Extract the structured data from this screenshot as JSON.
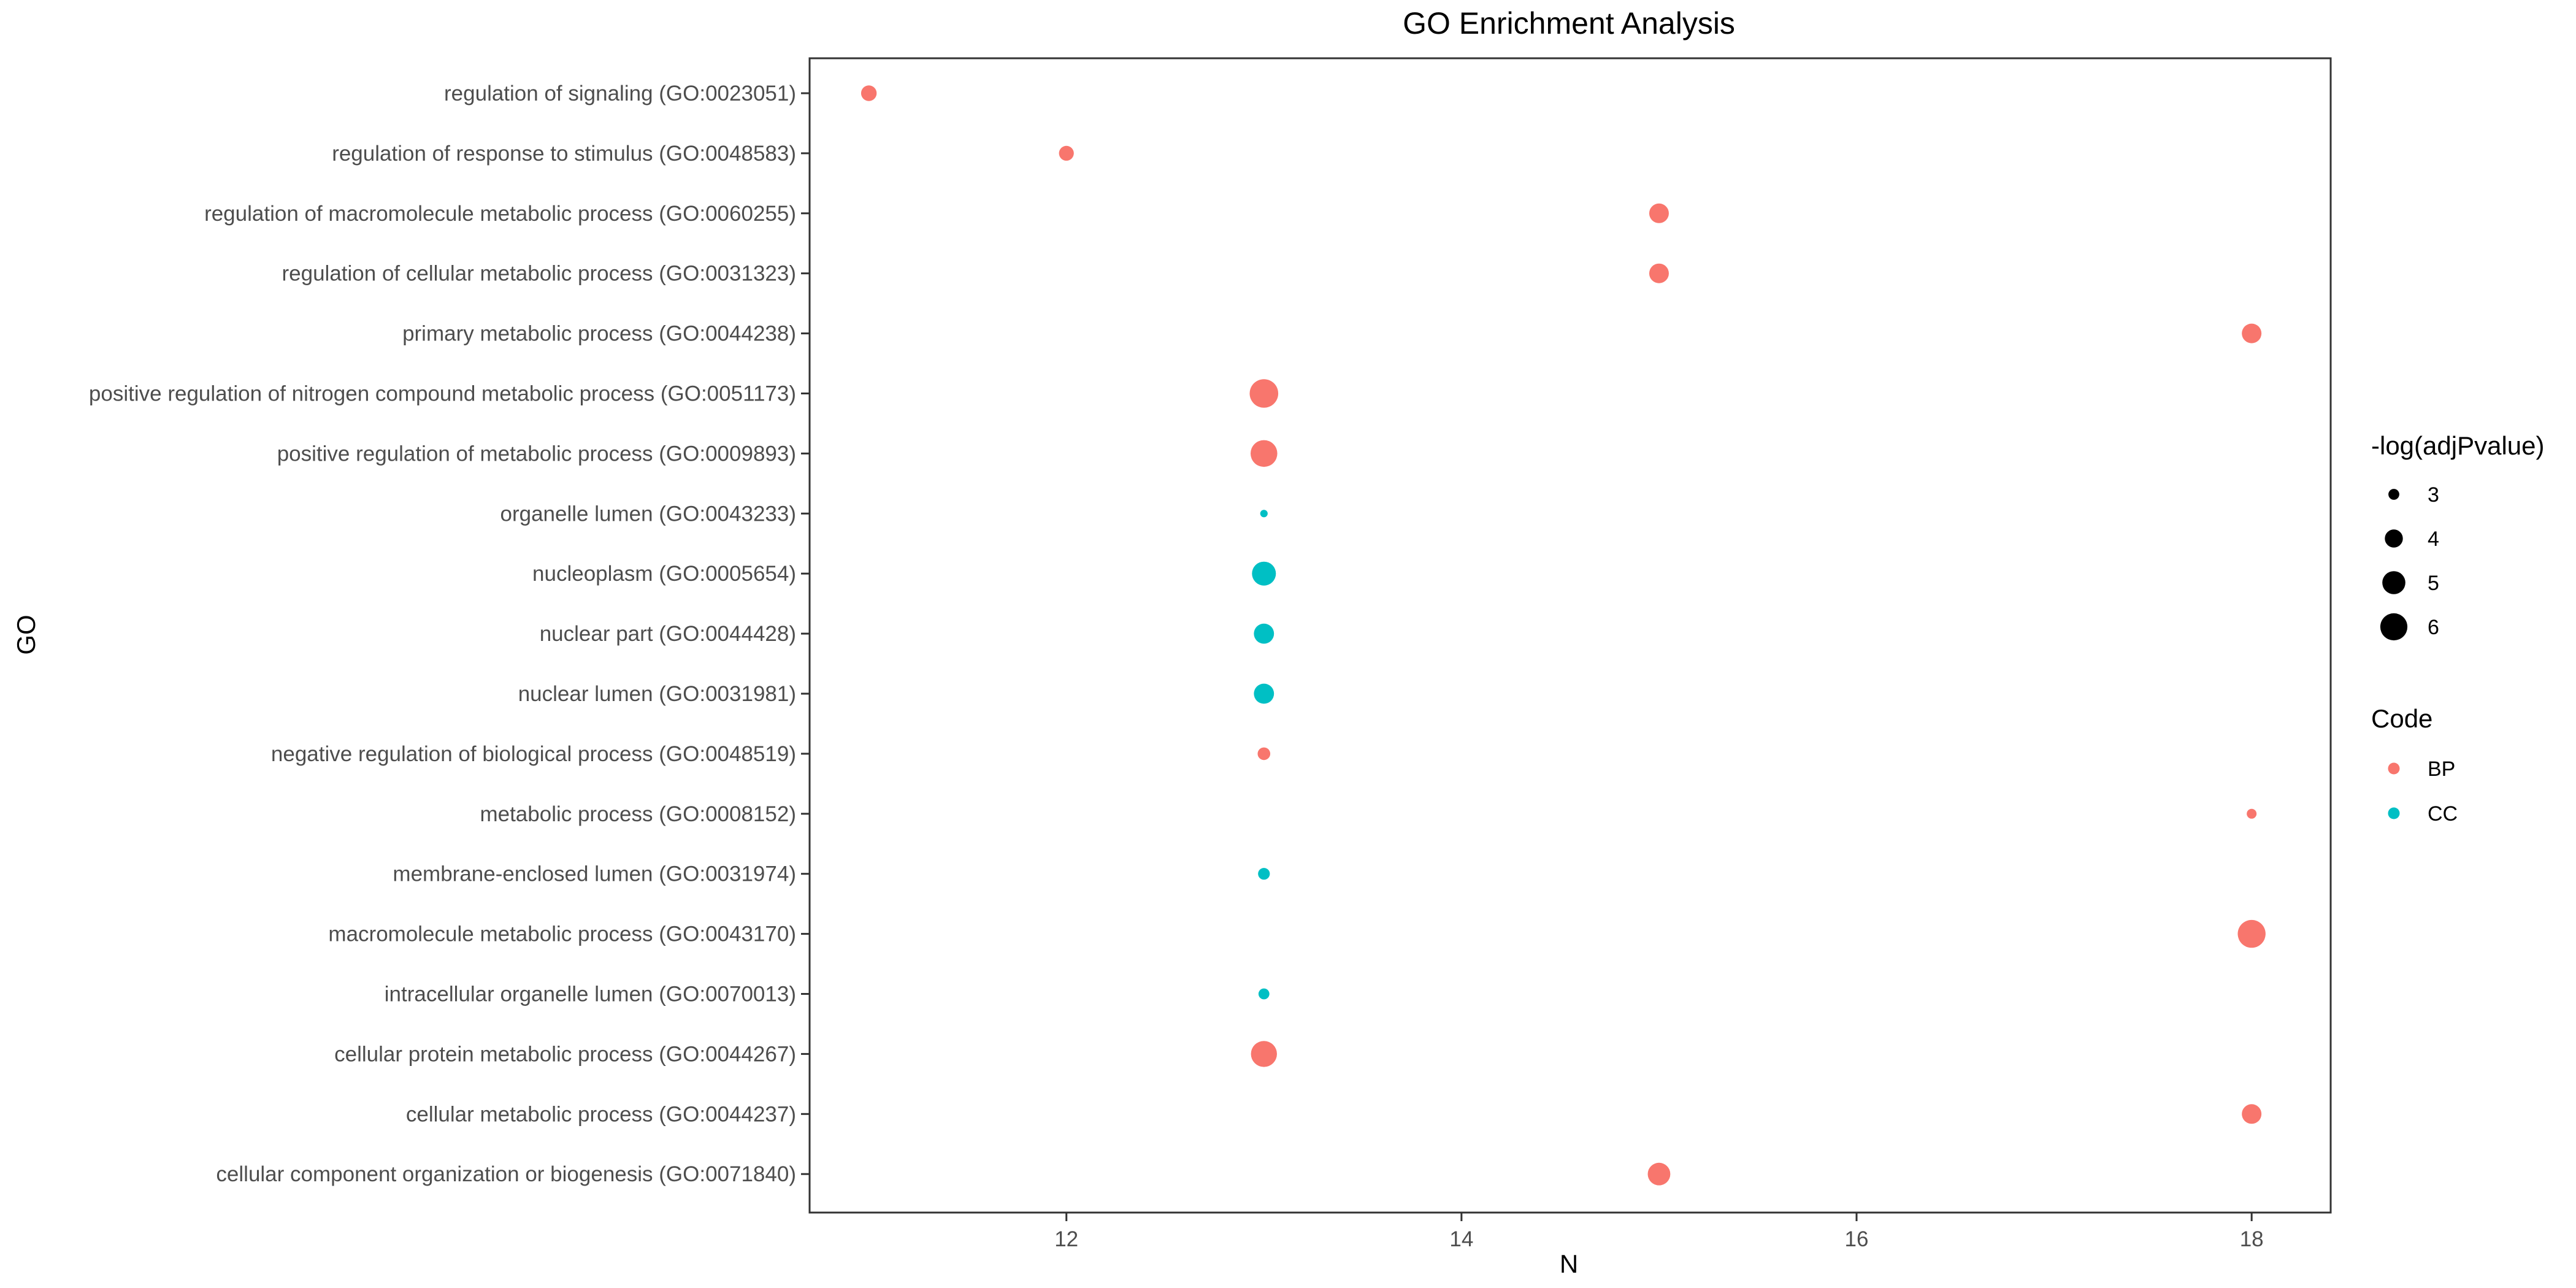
{
  "chart_data": {
    "type": "scatter",
    "title": "GO Enrichment Analysis",
    "xlabel": "N",
    "ylabel": "GO",
    "xlim": [
      10.7,
      18.4
    ],
    "x_ticks": [
      12,
      14,
      16,
      18
    ],
    "grid": false,
    "legend_position": "right",
    "size_legend": {
      "title": "-log(adjPvalue)",
      "levels": [
        3,
        4,
        5,
        6
      ]
    },
    "color_legend": {
      "title": "Code",
      "entries": [
        {
          "label": "BP",
          "color": "#F8766D"
        },
        {
          "label": "CC",
          "color": "#00BFC4"
        }
      ]
    },
    "points": [
      {
        "term": "regulation of signaling (GO:0023051)",
        "n": 11,
        "code": "BP",
        "neglog_adjp": 3.6
      },
      {
        "term": "regulation of response to stimulus (GO:0048583)",
        "n": 12,
        "code": "BP",
        "neglog_adjp": 3.5
      },
      {
        "term": "regulation of macromolecule metabolic process (GO:0060255)",
        "n": 15,
        "code": "BP",
        "neglog_adjp": 4.3
      },
      {
        "term": "regulation of cellular metabolic process (GO:0031323)",
        "n": 15,
        "code": "BP",
        "neglog_adjp": 4.3
      },
      {
        "term": "primary metabolic process (GO:0044238)",
        "n": 18,
        "code": "BP",
        "neglog_adjp": 4.3
      },
      {
        "term": "positive regulation of nitrogen compound metabolic process (GO:0051173)",
        "n": 13,
        "code": "BP",
        "neglog_adjp": 6.4
      },
      {
        "term": "positive regulation of metabolic process (GO:0009893)",
        "n": 13,
        "code": "BP",
        "neglog_adjp": 5.9
      },
      {
        "term": "organelle lumen (GO:0043233)",
        "n": 13,
        "code": "CC",
        "neglog_adjp": 2.7
      },
      {
        "term": "nucleoplasm (GO:0005654)",
        "n": 13,
        "code": "CC",
        "neglog_adjp": 5.2
      },
      {
        "term": "nuclear part (GO:0044428)",
        "n": 13,
        "code": "CC",
        "neglog_adjp": 4.4
      },
      {
        "term": "nuclear lumen (GO:0031981)",
        "n": 13,
        "code": "CC",
        "neglog_adjp": 4.4
      },
      {
        "term": "negative regulation of biological process (GO:0048519)",
        "n": 13,
        "code": "BP",
        "neglog_adjp": 3.2
      },
      {
        "term": "metabolic process (GO:0008152)",
        "n": 18,
        "code": "BP",
        "neglog_adjp": 2.9
      },
      {
        "term": "membrane-enclosed lumen (GO:0031974)",
        "n": 13,
        "code": "CC",
        "neglog_adjp": 3.1
      },
      {
        "term": "macromolecule metabolic process (GO:0043170)",
        "n": 18,
        "code": "BP",
        "neglog_adjp": 6.2
      },
      {
        "term": "intracellular organelle lumen (GO:0070013)",
        "n": 13,
        "code": "CC",
        "neglog_adjp": 3.0
      },
      {
        "term": "cellular protein metabolic process (GO:0044267)",
        "n": 13,
        "code": "BP",
        "neglog_adjp": 5.7
      },
      {
        "term": "cellular metabolic process (GO:0044237)",
        "n": 18,
        "code": "BP",
        "neglog_adjp": 4.3
      },
      {
        "term": "cellular component organization or biogenesis (GO:0071840)",
        "n": 15,
        "code": "BP",
        "neglog_adjp": 4.9
      }
    ]
  }
}
